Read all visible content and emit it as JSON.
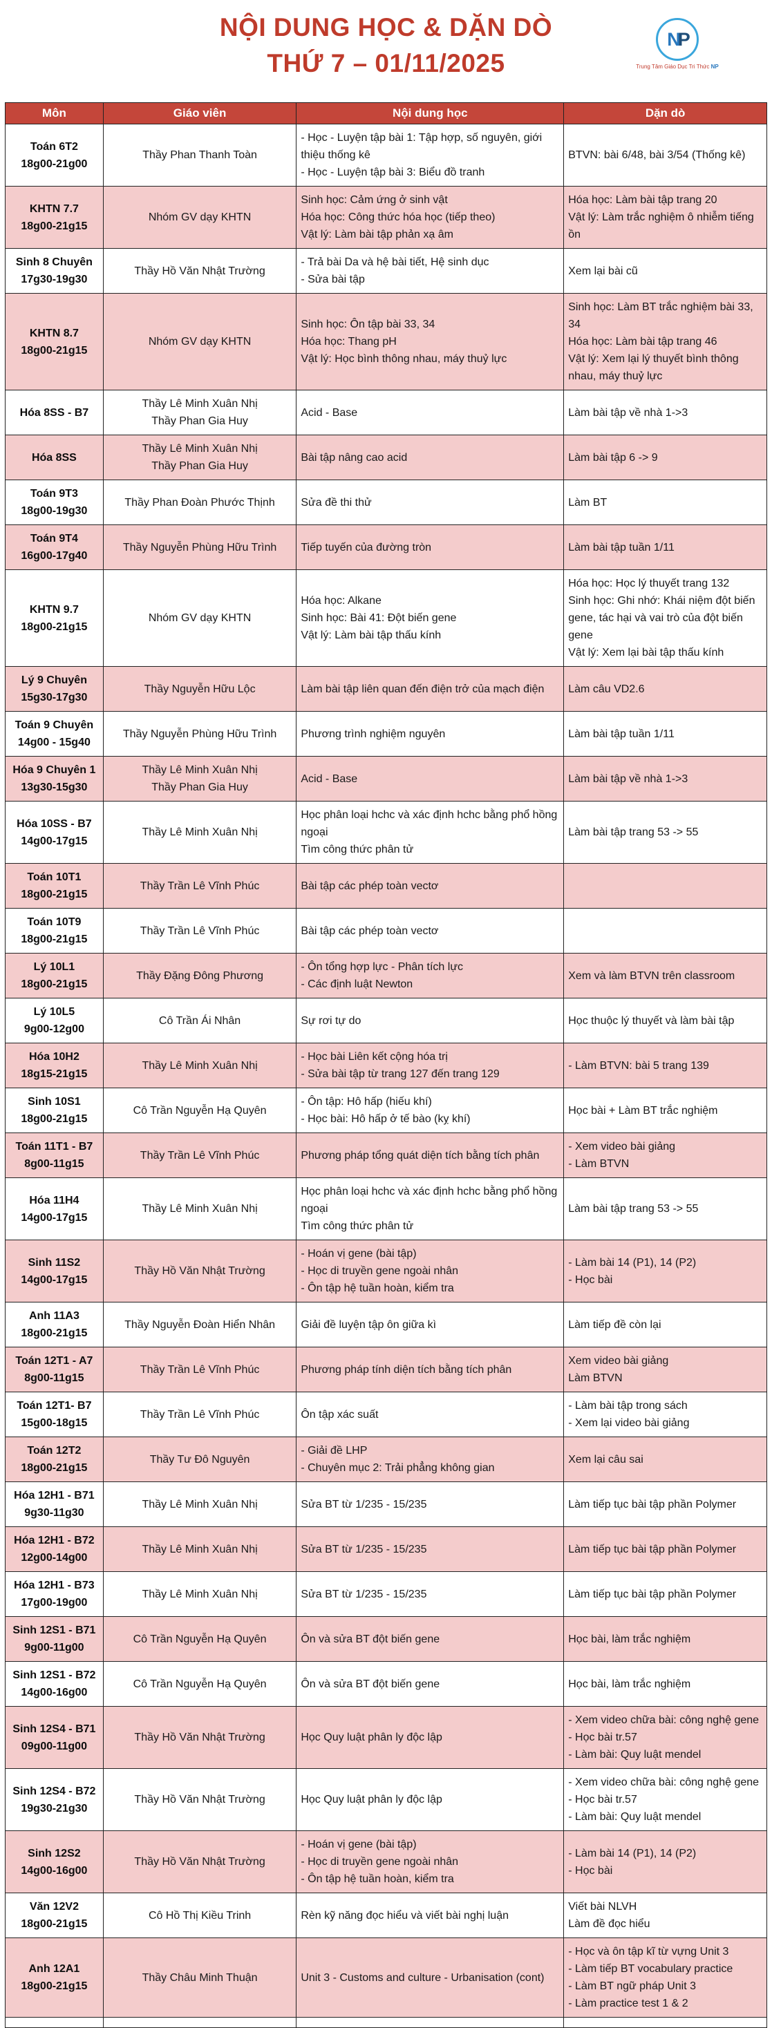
{
  "title": {
    "line1": "NỘI DUNG HỌC & DẶN DÒ",
    "line2": "THỨ 7 – 01/11/2025"
  },
  "logo": {
    "monogram_n": "N",
    "monogram_p": "P",
    "caption": "Trung Tâm Giáo Dục Tri Thức",
    "caption_suffix": "NP"
  },
  "colors": {
    "header_bg": "#C4463A",
    "title_red": "#BF3B2B",
    "row_pink": "#F4CCCC",
    "row_white": "#FFFFFF",
    "border": "#222222",
    "logo_blue": "#3AA6DC",
    "logo_navy": "#1F4E79",
    "logo_mid_blue": "#2878BE"
  },
  "table": {
    "columns": [
      "Môn",
      "Giáo viên",
      "Nội dung học",
      "Dặn dò"
    ],
    "rows": [
      {
        "bg": "white",
        "mon": [
          "Toán 6T2",
          "18g00-21g00"
        ],
        "gv": [
          "Thầy Phan Thanh Toàn"
        ],
        "nd": [
          "- Học - Luyện tập bài 1: Tập hợp, số nguyên, giới thiệu thống kê",
          "- Học - Luyện tập bài 3: Biểu đồ tranh"
        ],
        "dd": [
          "BTVN: bài 6/48, bài 3/54 (Thống kê)"
        ]
      },
      {
        "bg": "pink",
        "mon": [
          "KHTN 7.7",
          "18g00-21g15"
        ],
        "gv": [
          "Nhóm GV dạy KHTN"
        ],
        "nd": [
          "Sinh học: Cảm ứng ở sinh vật",
          "Hóa học: Công thức hóa học (tiếp theo)",
          "Vật lý: Làm bài tập phản xạ âm"
        ],
        "dd": [
          "Hóa học: Làm bài tập trang 20",
          "Vật lý: Làm trắc nghiệm ô nhiễm tiếng ồn"
        ]
      },
      {
        "bg": "white",
        "mon": [
          "Sinh 8 Chuyên",
          "17g30-19g30"
        ],
        "gv": [
          "Thầy Hồ Văn Nhật Trường"
        ],
        "nd": [
          "- Trả bài Da và hệ bài tiết, Hệ sinh dục",
          "- Sửa bài tập"
        ],
        "dd": [
          "Xem lại bài cũ"
        ]
      },
      {
        "bg": "pink",
        "mon": [
          "KHTN 8.7",
          "18g00-21g15"
        ],
        "gv": [
          "Nhóm GV dạy KHTN"
        ],
        "nd": [
          "Sinh học: Ôn tập bài 33, 34",
          "Hóa học: Thang pH",
          "Vật lý: Học bình thông nhau, máy thuỷ lực"
        ],
        "dd": [
          "Sinh học: Làm BT trắc nghiệm bài 33, 34",
          "Hóa học: Làm bài tập trang 46",
          "Vật lý: Xem lại lý thuyết bình thông nhau, máy thuỷ lực"
        ]
      },
      {
        "bg": "white",
        "mon": [
          "Hóa 8SS - B7"
        ],
        "gv": [
          "Thầy Lê Minh Xuân Nhị",
          "Thầy Phan Gia Huy"
        ],
        "nd": [
          "Acid - Base"
        ],
        "dd": [
          "Làm bài tập về nhà 1->3"
        ]
      },
      {
        "bg": "pink",
        "mon": [
          "Hóa 8SS"
        ],
        "gv": [
          "Thầy Lê Minh Xuân Nhị",
          "Thầy Phan Gia Huy"
        ],
        "nd": [
          "Bài tập nâng cao acid"
        ],
        "dd": [
          "Làm bài tập 6 -> 9"
        ]
      },
      {
        "bg": "white",
        "mon": [
          "Toán 9T3",
          "18g00-19g30"
        ],
        "gv": [
          "Thầy Phan Đoàn Phước Thịnh"
        ],
        "nd": [
          "Sửa đề thi thử"
        ],
        "dd": [
          "Làm BT"
        ]
      },
      {
        "bg": "pink",
        "mon": [
          "Toán 9T4",
          "16g00-17g40"
        ],
        "gv": [
          "Thầy Nguyễn Phùng Hữu Trình"
        ],
        "nd": [
          "Tiếp tuyến của đường tròn"
        ],
        "dd": [
          "Làm bài tập tuần 1/11"
        ]
      },
      {
        "bg": "white",
        "mon": [
          "KHTN 9.7",
          "18g00-21g15"
        ],
        "gv": [
          "Nhóm GV dạy KHTN"
        ],
        "nd": [
          "Hóa học: Alkane",
          "Sinh học: Bài 41: Đột biến gene",
          "Vật lý: Làm bài tập thấu kính"
        ],
        "dd": [
          "Hóa học: Học lý thuyết trang 132",
          "Sinh học: Ghi nhớ: Khái niệm đột biến gene, tác hại và vai trò của đột biến gene",
          "Vật lý: Xem lại bài tập thấu kính"
        ]
      },
      {
        "bg": "pink",
        "mon": [
          "Lý 9 Chuyên",
          "15g30-17g30"
        ],
        "gv": [
          "Thầy Nguyễn Hữu Lộc"
        ],
        "nd": [
          "Làm bài tập liên quan đến điện trở của mạch điện"
        ],
        "dd": [
          "Làm câu VD2.6"
        ]
      },
      {
        "bg": "white",
        "mon": [
          "Toán 9 Chuyên",
          "14g00 - 15g40"
        ],
        "gv": [
          "Thầy Nguyễn Phùng Hữu Trình"
        ],
        "nd": [
          "Phương trình nghiệm nguyên"
        ],
        "dd": [
          "Làm bài tập tuần 1/11"
        ]
      },
      {
        "bg": "pink",
        "mon": [
          "Hóa 9 Chuyên 1",
          "13g30-15g30"
        ],
        "gv": [
          "Thầy Lê Minh Xuân Nhị",
          "Thầy Phan Gia Huy"
        ],
        "nd": [
          "Acid - Base"
        ],
        "dd": [
          "Làm bài tập về nhà 1->3"
        ]
      },
      {
        "bg": "white",
        "mon": [
          "Hóa 10SS - B7",
          "14g00-17g15"
        ],
        "gv": [
          "Thầy Lê Minh Xuân Nhị"
        ],
        "nd": [
          "Học phân loại hchc và xác định hchc bằng phổ hồng ngoại",
          "Tìm công thức phân tử"
        ],
        "dd": [
          "Làm bài tập trang 53 -> 55"
        ]
      },
      {
        "bg": "pink",
        "mon": [
          "Toán 10T1",
          "18g00-21g15"
        ],
        "gv": [
          "Thầy Trần Lê Vĩnh Phúc"
        ],
        "nd": [
          "Bài tập các phép toàn vectơ"
        ],
        "dd": []
      },
      {
        "bg": "white",
        "mon": [
          "Toán 10T9",
          "18g00-21g15"
        ],
        "gv": [
          "Thầy Trần Lê Vĩnh Phúc"
        ],
        "nd": [
          "Bài tập các phép toàn vectơ"
        ],
        "dd": []
      },
      {
        "bg": "pink",
        "mon": [
          "Lý 10L1",
          "18g00-21g15"
        ],
        "gv": [
          "Thầy Đặng Đông Phương"
        ],
        "nd": [
          "- Ôn tổng hợp lực - Phân tích lực",
          "- Các định luật Newton"
        ],
        "dd": [
          "Xem và làm BTVN trên classroom"
        ]
      },
      {
        "bg": "white",
        "mon": [
          "Lý 10L5",
          "9g00-12g00"
        ],
        "gv": [
          "Cô Trần Ái Nhân"
        ],
        "nd": [
          "Sự rơi tự do"
        ],
        "dd": [
          "Học thuộc lý thuyết và làm bài tập"
        ]
      },
      {
        "bg": "pink",
        "mon": [
          "Hóa 10H2",
          "18g15-21g15"
        ],
        "gv": [
          "Thầy Lê Minh Xuân Nhị"
        ],
        "nd": [
          "- Học bài Liên kết cộng hóa trị",
          "- Sửa bài tập từ trang 127 đến trang 129"
        ],
        "dd": [
          "- Làm BTVN: bài 5 trang 139"
        ]
      },
      {
        "bg": "white",
        "mon": [
          "Sinh 10S1",
          "18g00-21g15"
        ],
        "gv": [
          "Cô Trần Nguyễn Hạ Quyên"
        ],
        "nd": [
          "- Ôn tập: Hô hấp (hiếu khí)",
          "- Học bài: Hô hấp ở tế bào (kỵ khí)"
        ],
        "dd": [
          "Học bài + Làm BT trắc nghiệm"
        ]
      },
      {
        "bg": "pink",
        "mon": [
          "Toán 11T1 - B7",
          "8g00-11g15"
        ],
        "gv": [
          "Thầy Trần Lê Vĩnh Phúc"
        ],
        "nd": [
          "Phương pháp tổng quát diện tích bằng tích phân"
        ],
        "dd": [
          "- Xem video bài giảng",
          "- Làm BTVN"
        ]
      },
      {
        "bg": "white",
        "mon": [
          "Hóa 11H4",
          "14g00-17g15"
        ],
        "gv": [
          "Thầy Lê Minh Xuân Nhị"
        ],
        "nd": [
          "Học phân loại hchc và xác định hchc bằng phổ hồng ngoại",
          "Tìm công thức phân tử"
        ],
        "dd": [
          "Làm bài tập trang 53 -> 55"
        ]
      },
      {
        "bg": "pink",
        "mon": [
          "Sinh 11S2",
          "14g00-17g15"
        ],
        "gv": [
          "Thầy Hồ Văn Nhật Trường"
        ],
        "nd": [
          "- Hoán vị gene (bài tập)",
          "- Học di truyền gene ngoài nhân",
          "- Ôn tập hệ tuần hoàn, kiểm tra"
        ],
        "dd": [
          "- Làm bài 14 (P1), 14 (P2)",
          "- Học bài"
        ]
      },
      {
        "bg": "white",
        "mon": [
          "Anh 11A3",
          "18g00-21g15"
        ],
        "gv": [
          "Thầy Nguyễn Đoàn Hiển Nhân"
        ],
        "nd": [
          "Giải đề luyện tập ôn giữa kì"
        ],
        "dd": [
          "Làm tiếp đề còn lại"
        ]
      },
      {
        "bg": "pink",
        "mon": [
          "Toán 12T1 - A7",
          "8g00-11g15"
        ],
        "gv": [
          "Thầy Trần Lê Vĩnh Phúc"
        ],
        "nd": [
          "Phương pháp tính diện tích bằng tích phân"
        ],
        "dd": [
          "Xem video bài giảng",
          "Làm BTVN"
        ]
      },
      {
        "bg": "white",
        "mon": [
          "Toán 12T1- B7",
          "15g00-18g15"
        ],
        "gv": [
          "Thầy Trần Lê Vĩnh Phúc"
        ],
        "nd": [
          "Ôn tập xác suất"
        ],
        "dd": [
          "- Làm bài tập trong sách",
          "- Xem lại video bài giảng"
        ]
      },
      {
        "bg": "pink",
        "mon": [
          "Toán 12T2",
          "18g00-21g15"
        ],
        "gv": [
          "Thầy Tư Đô Nguyên"
        ],
        "nd": [
          "- Giải đề LHP",
          "- Chuyên mục 2: Trải phẳng không gian"
        ],
        "dd": [
          "Xem lại câu sai"
        ]
      },
      {
        "bg": "white",
        "mon": [
          "Hóa 12H1 - B71",
          "9g30-11g30"
        ],
        "gv": [
          "Thầy Lê Minh Xuân Nhị"
        ],
        "nd": [
          "Sửa BT từ 1/235 - 15/235"
        ],
        "dd": [
          "Làm tiếp tục bài tập phần Polymer"
        ]
      },
      {
        "bg": "pink",
        "mon": [
          "Hóa 12H1 - B72",
          "12g00-14g00"
        ],
        "gv": [
          "Thầy Lê Minh Xuân Nhị"
        ],
        "nd": [
          "Sửa BT từ 1/235 - 15/235"
        ],
        "dd": [
          "Làm tiếp tục bài tập phần Polymer"
        ]
      },
      {
        "bg": "white",
        "mon": [
          "Hóa 12H1 - B73",
          "17g00-19g00"
        ],
        "gv": [
          "Thầy Lê Minh Xuân Nhị"
        ],
        "nd": [
          "Sửa BT từ 1/235 - 15/235"
        ],
        "dd": [
          "Làm tiếp tục bài tập phần Polymer"
        ]
      },
      {
        "bg": "pink",
        "mon": [
          "Sinh 12S1 - B71",
          "9g00-11g00"
        ],
        "gv": [
          "Cô Trần Nguyễn Hạ Quyên"
        ],
        "nd": [
          "Ôn và sửa BT đột biến gene"
        ],
        "dd": [
          "Học bài, làm trắc nghiệm"
        ]
      },
      {
        "bg": "white",
        "mon": [
          "Sinh 12S1 - B72",
          "14g00-16g00"
        ],
        "gv": [
          "Cô Trần Nguyễn Hạ Quyên"
        ],
        "nd": [
          "Ôn và sửa BT đột biến gene"
        ],
        "dd": [
          "Học bài, làm trắc nghiệm"
        ]
      },
      {
        "bg": "pink",
        "mon": [
          "Sinh 12S4 - B71",
          "09g00-11g00"
        ],
        "gv": [
          "Thầy Hồ Văn Nhật Trường"
        ],
        "nd": [
          "Học Quy luật phân ly độc lập"
        ],
        "dd": [
          "- Xem video chữa bài: công nghệ gene",
          "- Học bài tr.57",
          "- Làm bài: Quy luật mendel"
        ]
      },
      {
        "bg": "white",
        "mon": [
          "Sinh 12S4 - B72",
          "19g30-21g30"
        ],
        "gv": [
          "Thầy Hồ Văn Nhật Trường"
        ],
        "nd": [
          "Học Quy luật phân ly độc lập"
        ],
        "dd": [
          "- Xem video chữa bài: công nghệ gene",
          "- Học bài tr.57",
          "- Làm bài: Quy luật mendel"
        ]
      },
      {
        "bg": "pink",
        "mon": [
          "Sinh 12S2",
          "14g00-16g00"
        ],
        "gv": [
          "Thầy Hồ Văn Nhật Trường"
        ],
        "nd": [
          "- Hoán vị gene (bài tập)",
          "- Học di truyền gene ngoài nhân",
          "- Ôn tập hệ tuần hoàn, kiểm tra"
        ],
        "dd": [
          "- Làm bài 14 (P1), 14 (P2)",
          "- Học bài"
        ]
      },
      {
        "bg": "white",
        "mon": [
          "Văn 12V2",
          "18g00-21g15"
        ],
        "gv": [
          "Cô Hồ Thị Kiều Trinh"
        ],
        "nd": [
          "Rèn kỹ năng đọc hiểu và viết bài nghị luận"
        ],
        "dd": [
          "Viết bài NLVH",
          "Làm đề đọc hiểu"
        ]
      },
      {
        "bg": "pink",
        "mon": [
          "Anh 12A1",
          "18g00-21g15"
        ],
        "gv": [
          "Thầy Châu Minh Thuận"
        ],
        "nd": [
          "Unit 3 - Customs and culture - Urbanisation (cont)"
        ],
        "dd": [
          "- Học và ôn tập kĩ từ vựng Unit 3",
          "- Làm tiếp BT vocabulary practice",
          "- Làm BT ngữ pháp Unit 3",
          "- Làm practice test 1 & 2"
        ]
      },
      {
        "bg": "white",
        "mon": [
          ""
        ],
        "gv": [
          ""
        ],
        "nd": [
          ""
        ],
        "dd": [
          ""
        ]
      }
    ]
  }
}
